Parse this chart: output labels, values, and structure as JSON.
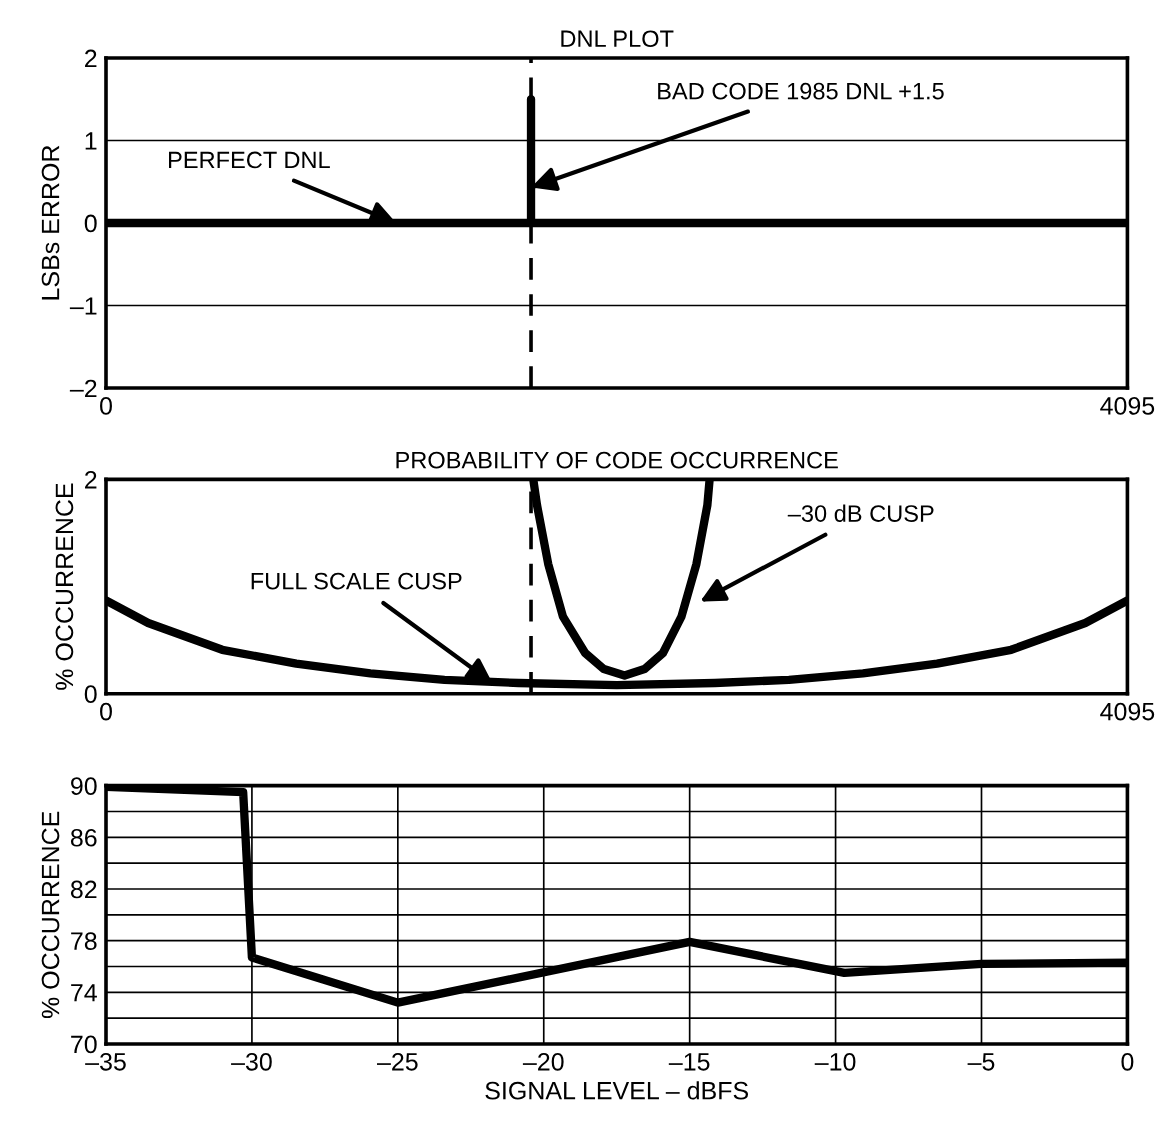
{
  "chart_data": [
    {
      "type": "line",
      "title": "DNL PLOT",
      "ylabel": "LSBs ERROR",
      "xlim": [
        0,
        4095
      ],
      "xticks": [
        0,
        4095
      ],
      "ylim": [
        -2,
        2
      ],
      "yticks": [
        {
          "value": -2,
          "label": "–2"
        },
        {
          "value": -1,
          "label": "–1"
        },
        0,
        1,
        2
      ],
      "grid": "y",
      "line_style": "solid",
      "series": [
        {
          "color": "#000000",
          "x": [
            0,
            1704,
            1704,
            1704,
            4095
          ],
          "values": [
            0,
            0,
            1.5,
            0,
            0
          ]
        }
      ],
      "ref_lines": [
        {
          "axis": "x",
          "value": 1704,
          "line_style": "dashed",
          "color": "#000000"
        }
      ],
      "annotations": [
        {
          "text": "PERFECT DNL",
          "x": 1163,
          "y": 0
        },
        {
          "text": "BAD CODE 1985 DNL +1.5",
          "x": 1704,
          "y": 0.43
        }
      ]
    },
    {
      "type": "line",
      "title": "PROBABILITY OF CODE OCCURRENCE",
      "ylabel": "% OCCURRENCE",
      "xlim": [
        0,
        4095
      ],
      "xticks": [
        0,
        4095
      ],
      "ylim": [
        0,
        2
      ],
      "yticks": [
        0,
        2
      ],
      "line_style": "solid",
      "series": [
        {
          "color": "#000000",
          "x": [
            0,
            169,
            466,
            763,
            1060,
            1357,
            1654,
            2048,
            2441,
            2738,
            3035,
            3332,
            3629,
            3926,
            4095
          ],
          "values": [
            0.87,
            0.66,
            0.41,
            0.28,
            0.19,
            0.13,
            0.1,
            0.08,
            0.1,
            0.13,
            0.19,
            0.28,
            0.41,
            0.66,
            0.87
          ]
        },
        {
          "color": "#000000",
          "x": [
            1713,
            1728,
            1773,
            1832,
            1921,
            1996,
            2079,
            2159,
            2233,
            2307,
            2367,
            2411,
            2420
          ],
          "values": [
            2,
            1.76,
            1.21,
            0.72,
            0.38,
            0.23,
            0.17,
            0.23,
            0.38,
            0.72,
            1.21,
            1.76,
            2
          ]
        }
      ],
      "ref_lines": [
        {
          "axis": "x",
          "value": 1704,
          "line_style": "dashed",
          "color": "#000000"
        }
      ],
      "annotations": [
        {
          "text": "FULL SCALE CUSP",
          "x": 1549,
          "y": 0.1
        },
        {
          "text": "–30 dB CUSP",
          "x": 2382,
          "y": 0.86
        }
      ]
    },
    {
      "type": "line",
      "xlabel": "SIGNAL LEVEL – dBFS",
      "ylabel": "% OCCURRENCE",
      "xlim": [
        -35,
        0
      ],
      "xticks": [
        {
          "value": -35,
          "label": "–35"
        },
        {
          "value": -30,
          "label": "–30"
        },
        {
          "value": -25,
          "label": "–25"
        },
        {
          "value": -20,
          "label": "–20"
        },
        {
          "value": -15,
          "label": "–15"
        },
        {
          "value": -10,
          "label": "–10"
        },
        {
          "value": -5,
          "label": "–5"
        },
        0
      ],
      "ylim": [
        70,
        90
      ],
      "yticks": [
        70,
        {
          "value": 72,
          "label": null
        },
        74,
        {
          "value": 76,
          "label": null
        },
        78,
        {
          "value": 80,
          "label": null
        },
        82,
        {
          "value": 84,
          "label": null
        },
        86,
        {
          "value": 88,
          "label": null
        },
        90
      ],
      "grid": true,
      "line_style": "solid",
      "series": [
        {
          "color": "#000000",
          "x": [
            -35,
            -30.3,
            -30,
            -25,
            -15,
            -9.7,
            -5,
            0
          ],
          "values": [
            89.9,
            89.5,
            76.7,
            73.2,
            77.9,
            75.5,
            76.2,
            76.3
          ]
        }
      ]
    }
  ]
}
